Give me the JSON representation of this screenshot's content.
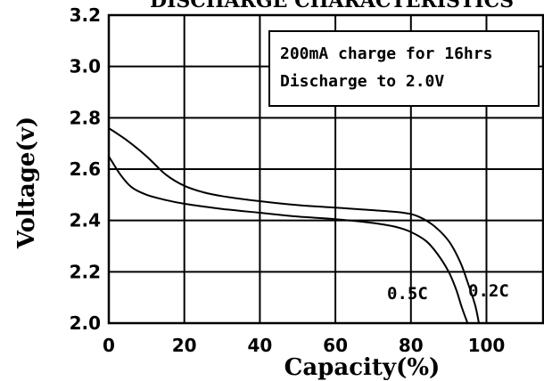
{
  "chart_data": {
    "type": "line",
    "title": "DISCHARGE CHARACTERISTICS",
    "xlabel": "Capacity(%)",
    "ylabel": "Voltage(v)",
    "xlim": [
      0,
      115
    ],
    "ylim": [
      2.0,
      3.2
    ],
    "x_ticks": [
      0,
      20,
      40,
      60,
      80,
      100
    ],
    "x_tick_labels": [
      "0",
      "20",
      "40",
      "60",
      "80",
      "100"
    ],
    "y_ticks": [
      2.0,
      2.2,
      2.4,
      2.6,
      2.8,
      3.0,
      3.2
    ],
    "y_tick_labels": [
      "2.0",
      "2.2",
      "2.4",
      "2.6",
      "2.8",
      "3.0",
      "3.2"
    ],
    "grid": true,
    "annotation_lines": [
      "200mA charge for 16hrs",
      "Discharge to 2.0V"
    ],
    "series": [
      {
        "name": "0.2C",
        "x": [
          0,
          5,
          10,
          15,
          20,
          25,
          30,
          40,
          50,
          60,
          70,
          78,
          82,
          86,
          90,
          93,
          95,
          97,
          98
        ],
        "y": [
          2.76,
          2.71,
          2.65,
          2.58,
          2.535,
          2.51,
          2.495,
          2.475,
          2.46,
          2.45,
          2.44,
          2.43,
          2.415,
          2.38,
          2.32,
          2.24,
          2.16,
          2.07,
          2.0
        ]
      },
      {
        "name": "0.5C",
        "x": [
          0,
          3,
          6,
          10,
          15,
          20,
          30,
          40,
          50,
          60,
          70,
          76,
          80,
          84,
          87,
          90,
          92,
          93.5,
          95
        ],
        "y": [
          2.65,
          2.58,
          2.53,
          2.5,
          2.48,
          2.465,
          2.445,
          2.43,
          2.415,
          2.405,
          2.39,
          2.375,
          2.355,
          2.32,
          2.27,
          2.2,
          2.13,
          2.06,
          2.0
        ]
      }
    ]
  }
}
